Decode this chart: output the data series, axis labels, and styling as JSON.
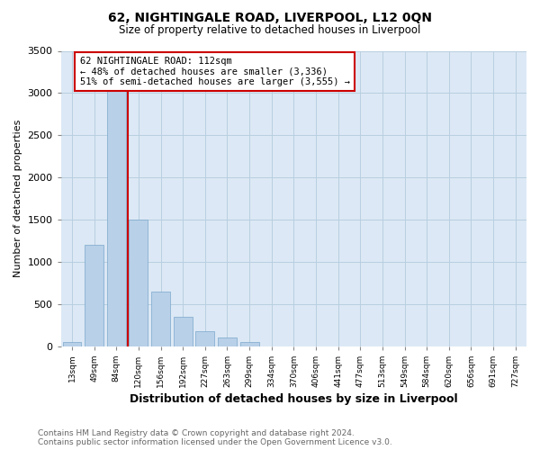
{
  "title": "62, NIGHTINGALE ROAD, LIVERPOOL, L12 0QN",
  "subtitle": "Size of property relative to detached houses in Liverpool",
  "xlabel": "Distribution of detached houses by size in Liverpool",
  "ylabel": "Number of detached properties",
  "footnote1": "Contains HM Land Registry data © Crown copyright and database right 2024.",
  "footnote2": "Contains public sector information licensed under the Open Government Licence v3.0.",
  "annotation_line1": "62 NIGHTINGALE ROAD: 112sqm",
  "annotation_line2": "← 48% of detached houses are smaller (3,336)",
  "annotation_line3": "51% of semi-detached houses are larger (3,555) →",
  "bar_color": "#b8d0e8",
  "bar_edge_color": "#7aa8cc",
  "vline_color": "#cc0000",
  "annotation_box_edge": "#cc0000",
  "categories": [
    "13sqm",
    "49sqm",
    "84sqm",
    "120sqm",
    "156sqm",
    "192sqm",
    "227sqm",
    "263sqm",
    "299sqm",
    "334sqm",
    "370sqm",
    "406sqm",
    "441sqm",
    "477sqm",
    "513sqm",
    "549sqm",
    "584sqm",
    "620sqm",
    "656sqm",
    "691sqm",
    "727sqm"
  ],
  "values": [
    50,
    1200,
    3300,
    1500,
    650,
    350,
    175,
    100,
    50,
    0,
    0,
    0,
    0,
    0,
    0,
    0,
    0,
    0,
    0,
    0,
    0
  ],
  "ylim": [
    0,
    3500
  ],
  "yticks": [
    0,
    500,
    1000,
    1500,
    2000,
    2500,
    3000,
    3500
  ],
  "vline_x_index": 2.5,
  "plot_bg_color": "#dce8f5",
  "grid_color": "#b8cfe0",
  "background_color": "#ffffff"
}
